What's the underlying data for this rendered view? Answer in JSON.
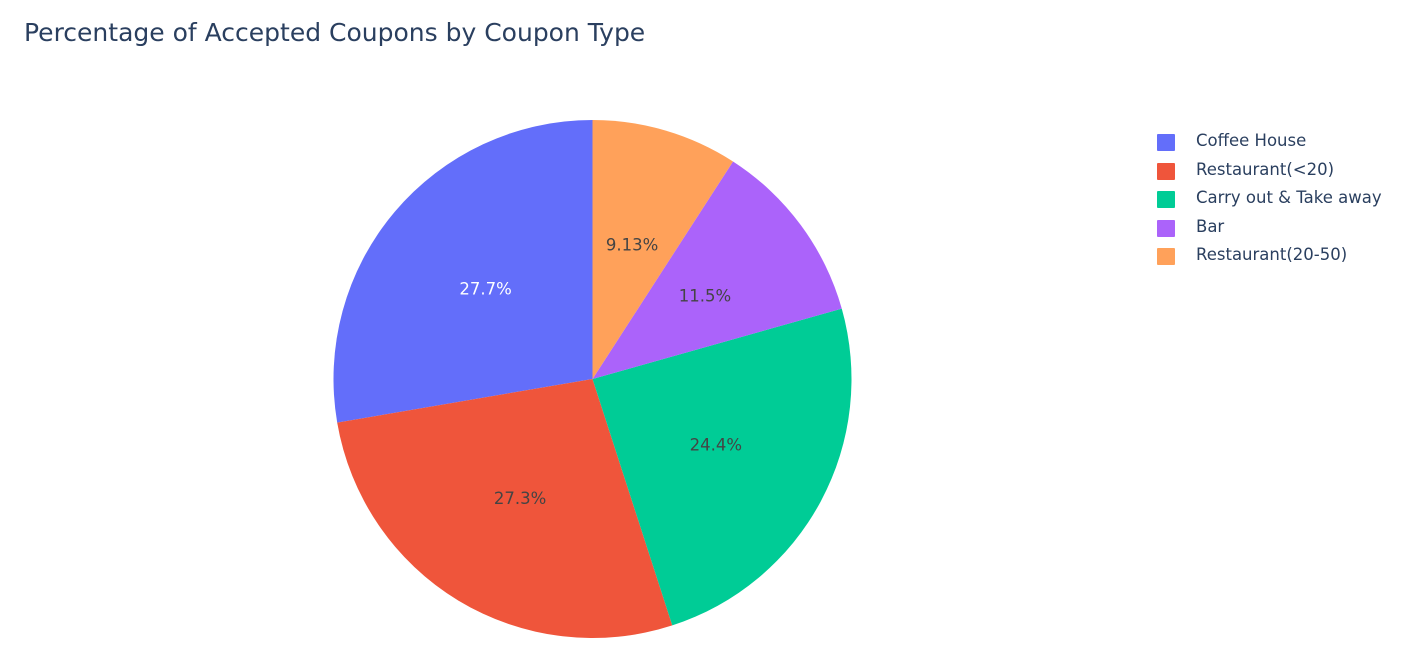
{
  "chart_data": {
    "type": "pie",
    "title": "Percentage of Accepted Coupons by Coupon Type",
    "labels": [
      "Coffee House",
      "Restaurant(<20)",
      "Carry out & Take away",
      "Bar",
      "Restaurant(20-50)"
    ],
    "values": [
      27.7,
      27.3,
      24.4,
      11.5,
      9.13
    ],
    "value_labels": [
      "27.7%",
      "27.3%",
      "24.4%",
      "11.5%",
      "9.13%"
    ],
    "colors": [
      "#636efa",
      "#ef553b",
      "#00cc96",
      "#ab63fa",
      "#ffa15a"
    ],
    "text_colors": [
      "#ffffff",
      "#444444",
      "#444444",
      "#444444",
      "#444444"
    ],
    "direction": "counterclockwise",
    "start_angle": "top",
    "legend_position": "right"
  }
}
